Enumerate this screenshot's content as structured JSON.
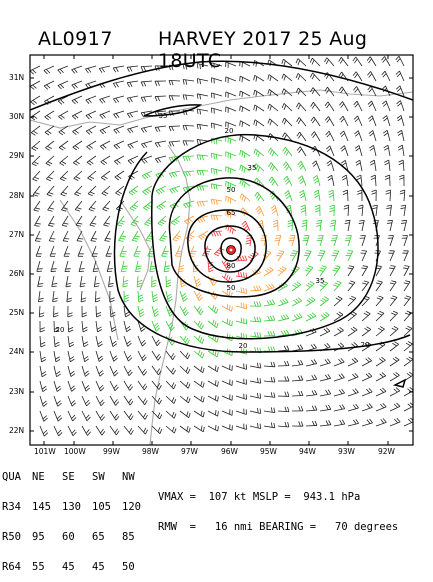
{
  "header": {
    "storm_id": "AL0917",
    "title": "HARVEY 2017 25 Aug 18UTC"
  },
  "map": {
    "lat_labels": [
      "31N",
      "30N",
      "29N",
      "28N",
      "27N",
      "26N",
      "25N",
      "24N",
      "23N",
      "22N"
    ],
    "lon_labels": [
      "101W",
      "100W",
      "99W",
      "98W",
      "97W",
      "96W",
      "95W",
      "94W",
      "93W",
      "92W"
    ],
    "contour_labels": [
      "20",
      "35",
      "50",
      "65",
      "80",
      "35",
      "50",
      "35",
      "20",
      "20",
      "20"
    ],
    "colors": {
      "contour": "#000000",
      "barb_light": "#222222",
      "barb_34kt": "#33cc33",
      "barb_50kt": "#ff9933",
      "barb_64kt": "#ee3333",
      "center": "#ee2222",
      "coast": "#aaaaaa"
    }
  },
  "radii_table": {
    "header": [
      "QUA",
      "NE",
      "SE",
      "SW",
      "NW"
    ],
    "rows": [
      [
        "R34",
        "145",
        "130",
        "105",
        "120"
      ],
      [
        "R50",
        "95",
        "60",
        "65",
        "85"
      ],
      [
        "R64",
        "55",
        "45",
        "45",
        "50"
      ]
    ]
  },
  "stats": {
    "line1": "VMAX =  107 kt MSLP =  943.1 hPa",
    "line2": "RMW  =   16 nmi BEARING =   70 degrees"
  }
}
